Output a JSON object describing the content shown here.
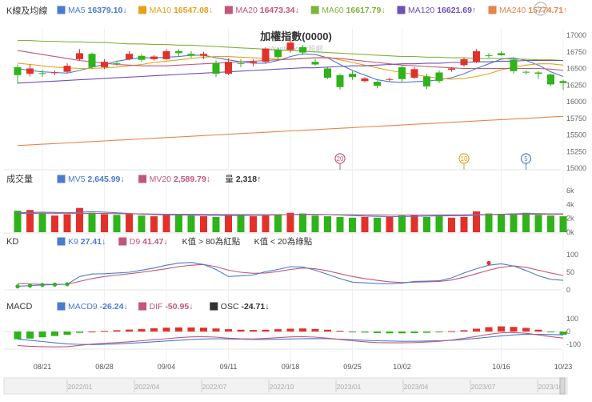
{
  "chart_data": {
    "type": "candlestick",
    "title": "加權指數(0000)",
    "watermark": "WantGoo 玩股網",
    "x_tick_labels": [
      {
        "label": "08/21",
        "index": 2
      },
      {
        "label": "08/28",
        "index": 7
      },
      {
        "label": "09/04",
        "index": 12
      },
      {
        "label": "09/11",
        "index": 17
      },
      {
        "label": "09/18",
        "index": 22
      },
      {
        "label": "09/25",
        "index": 27
      },
      {
        "label": "10/02",
        "index": 31
      },
      {
        "label": "10/16",
        "index": 39
      },
      {
        "label": "10/23",
        "index": 44
      }
    ],
    "overview_labels": [
      "2022/01",
      "2022/04",
      "2022/07",
      "2022/10",
      "2023/01",
      "2023/04",
      "2023/07",
      "2023/10"
    ],
    "price_panel": {
      "label": "K線及均線",
      "ylim": [
        15000,
        17000
      ],
      "yticks": [
        17000,
        16750,
        16500,
        16250,
        16000,
        15750,
        15500,
        15250,
        15000
      ],
      "legend": [
        {
          "name": "MA5",
          "value": "16379.10",
          "arrow": "↓",
          "color": "#4a7bd0"
        },
        {
          "name": "MA10",
          "value": "16547.08",
          "arrow": "↓",
          "color": "#e3a21a"
        },
        {
          "name": "MA20",
          "value": "16473.34",
          "arrow": "↓",
          "color": "#c2567a"
        },
        {
          "name": "MA60",
          "value": "16617.79",
          "arrow": "↓",
          "color": "#7fb33a"
        },
        {
          "name": "MA120",
          "value": "16621.69",
          "arrow": "↑",
          "color": "#6f4fb8"
        },
        {
          "name": "MA240",
          "value": "15774.71",
          "arrow": "↑",
          "color": "#e6844a"
        }
      ],
      "candles": [
        {
          "o": 16520,
          "h": 16560,
          "l": 16270,
          "c": 16400
        },
        {
          "o": 16420,
          "h": 16560,
          "l": 16380,
          "c": 16500
        },
        {
          "o": 16430,
          "h": 16480,
          "l": 16370,
          "c": 16420
        },
        {
          "o": 16430,
          "h": 16470,
          "l": 16400,
          "c": 16440
        },
        {
          "o": 16450,
          "h": 16580,
          "l": 16430,
          "c": 16540
        },
        {
          "o": 16640,
          "h": 16790,
          "l": 16620,
          "c": 16730
        },
        {
          "o": 16720,
          "h": 16740,
          "l": 16500,
          "c": 16520
        },
        {
          "o": 16520,
          "h": 16640,
          "l": 16490,
          "c": 16600
        },
        {
          "o": 16580,
          "h": 16600,
          "l": 16540,
          "c": 16570
        },
        {
          "o": 16640,
          "h": 16760,
          "l": 16620,
          "c": 16720
        },
        {
          "o": 16690,
          "h": 16720,
          "l": 16600,
          "c": 16630
        },
        {
          "o": 16640,
          "h": 16700,
          "l": 16620,
          "c": 16680
        },
        {
          "o": 16640,
          "h": 16790,
          "l": 16630,
          "c": 16760
        },
        {
          "o": 16760,
          "h": 16790,
          "l": 16670,
          "c": 16730
        },
        {
          "o": 16720,
          "h": 16760,
          "l": 16660,
          "c": 16690
        },
        {
          "o": 16690,
          "h": 16750,
          "l": 16640,
          "c": 16720
        },
        {
          "o": 16580,
          "h": 16620,
          "l": 16370,
          "c": 16420
        },
        {
          "o": 16420,
          "h": 16650,
          "l": 16400,
          "c": 16600
        },
        {
          "o": 16580,
          "h": 16640,
          "l": 16520,
          "c": 16570
        },
        {
          "o": 16580,
          "h": 16640,
          "l": 16530,
          "c": 16600
        },
        {
          "o": 16600,
          "h": 16820,
          "l": 16580,
          "c": 16800
        },
        {
          "o": 16780,
          "h": 16810,
          "l": 16640,
          "c": 16670
        },
        {
          "o": 16780,
          "h": 16950,
          "l": 16740,
          "c": 16890
        },
        {
          "o": 16820,
          "h": 16850,
          "l": 16700,
          "c": 16740
        },
        {
          "o": 16600,
          "h": 16640,
          "l": 16540,
          "c": 16560
        },
        {
          "o": 16500,
          "h": 16520,
          "l": 16340,
          "c": 16360
        },
        {
          "o": 16400,
          "h": 16420,
          "l": 16180,
          "c": 16220
        },
        {
          "o": 16420,
          "h": 16460,
          "l": 16330,
          "c": 16370
        },
        {
          "o": 16310,
          "h": 16370,
          "l": 16290,
          "c": 16350
        },
        {
          "o": 16300,
          "h": 16320,
          "l": 16200,
          "c": 16240
        },
        {
          "o": 16330,
          "h": 16360,
          "l": 16300,
          "c": 16340
        },
        {
          "o": 16520,
          "h": 16540,
          "l": 16290,
          "c": 16340
        },
        {
          "o": 16360,
          "h": 16520,
          "l": 16340,
          "c": 16490
        },
        {
          "o": 16380,
          "h": 16420,
          "l": 16190,
          "c": 16230
        },
        {
          "o": 16440,
          "h": 16470,
          "l": 16280,
          "c": 16310
        },
        {
          "o": 16480,
          "h": 16520,
          "l": 16450,
          "c": 16500
        },
        {
          "o": 16550,
          "h": 16660,
          "l": 16530,
          "c": 16640
        },
        {
          "o": 16600,
          "h": 16790,
          "l": 16580,
          "c": 16760
        },
        {
          "o": 16700,
          "h": 16730,
          "l": 16660,
          "c": 16690
        },
        {
          "o": 16730,
          "h": 16760,
          "l": 16690,
          "c": 16700
        },
        {
          "o": 16630,
          "h": 16660,
          "l": 16420,
          "c": 16460
        },
        {
          "o": 16450,
          "h": 16470,
          "l": 16410,
          "c": 16440
        },
        {
          "o": 16440,
          "h": 16460,
          "l": 16340,
          "c": 16420
        },
        {
          "o": 16410,
          "h": 16420,
          "l": 16240,
          "c": 16260
        },
        {
          "o": 16310,
          "h": 16330,
          "l": 16180,
          "c": 16280
        }
      ],
      "ma_lines": {
        "MA5": [
          16500,
          16470,
          16450,
          16440,
          16430,
          16470,
          16520,
          16560,
          16610,
          16640,
          16660,
          16660,
          16670,
          16680,
          16700,
          16700,
          16660,
          16630,
          16600,
          16580,
          16580,
          16620,
          16680,
          16720,
          16710,
          16660,
          16560,
          16470,
          16400,
          16330,
          16300,
          16290,
          16300,
          16310,
          16330,
          16360,
          16420,
          16500,
          16570,
          16640,
          16660,
          16620,
          16550,
          16450,
          16380
        ],
        "MA10": [
          16580,
          16560,
          16540,
          16520,
          16510,
          16500,
          16500,
          16510,
          16520,
          16540,
          16560,
          16590,
          16610,
          16630,
          16650,
          16670,
          16680,
          16680,
          16670,
          16660,
          16650,
          16640,
          16640,
          16650,
          16660,
          16670,
          16630,
          16590,
          16550,
          16510,
          16470,
          16440,
          16410,
          16380,
          16350,
          16340,
          16350,
          16380,
          16420,
          16480,
          16520,
          16550,
          16570,
          16570,
          16550
        ],
        "MA20": [
          16770,
          16740,
          16710,
          16680,
          16650,
          16620,
          16600,
          16580,
          16560,
          16550,
          16540,
          16540,
          16540,
          16550,
          16560,
          16570,
          16580,
          16590,
          16600,
          16610,
          16620,
          16630,
          16640,
          16650,
          16660,
          16660,
          16650,
          16630,
          16610,
          16590,
          16570,
          16550,
          16540,
          16530,
          16520,
          16510,
          16500,
          16500,
          16500,
          16500,
          16500,
          16500,
          16500,
          16490,
          16470
        ],
        "MA60": [
          16920,
          16920,
          16910,
          16910,
          16900,
          16900,
          16890,
          16890,
          16880,
          16870,
          16870,
          16860,
          16860,
          16850,
          16850,
          16840,
          16830,
          16820,
          16810,
          16800,
          16790,
          16780,
          16770,
          16760,
          16750,
          16740,
          16730,
          16720,
          16710,
          16700,
          16690,
          16680,
          16680,
          16670,
          16670,
          16660,
          16660,
          16650,
          16650,
          16650,
          16640,
          16640,
          16630,
          16630,
          16620
        ],
        "MA120": [
          16280,
          16290,
          16300,
          16310,
          16320,
          16330,
          16340,
          16350,
          16360,
          16370,
          16380,
          16390,
          16400,
          16410,
          16420,
          16430,
          16440,
          16450,
          16460,
          16470,
          16480,
          16490,
          16500,
          16510,
          16510,
          16520,
          16530,
          16540,
          16540,
          16550,
          16560,
          16570,
          16570,
          16580,
          16580,
          16590,
          16590,
          16600,
          16600,
          16610,
          16610,
          16620,
          16620,
          16620,
          16620
        ],
        "MA240": [
          15340,
          15350,
          15360,
          15370,
          15380,
          15390,
          15400,
          15410,
          15420,
          15430,
          15440,
          15450,
          15460,
          15470,
          15480,
          15490,
          15500,
          15510,
          15520,
          15530,
          15540,
          15550,
          15560,
          15570,
          15580,
          15590,
          15600,
          15610,
          15620,
          15630,
          15640,
          15650,
          15660,
          15670,
          15680,
          15690,
          15700,
          15710,
          15720,
          15730,
          15740,
          15750,
          15760,
          15770,
          15780
        ]
      },
      "markers": [
        {
          "label": "20",
          "index": 26,
          "color": "#c2567a"
        },
        {
          "label": "10",
          "index": 36,
          "color": "#e3a21a"
        },
        {
          "label": "5",
          "index": 41,
          "color": "#4a7bd0"
        }
      ]
    },
    "volume_panel": {
      "label": "成交量",
      "unit_ticks": [
        "6k",
        "4k",
        "2k",
        "0k"
      ],
      "ylim": [
        0,
        6000
      ],
      "legend": [
        {
          "name": "MV5",
          "value": "2,645.99",
          "arrow": "↓",
          "color": "#4a7bd0"
        },
        {
          "name": "MV20",
          "value": "2,589.79",
          "arrow": "↓",
          "color": "#c2567a"
        },
        {
          "name": "量",
          "value": "2,318",
          "arrow": "↑",
          "color": "#333333"
        }
      ],
      "values": [
        3100,
        3200,
        2700,
        2400,
        2600,
        3500,
        2800,
        2600,
        2500,
        2600,
        2400,
        2300,
        2500,
        2600,
        2400,
        2300,
        2200,
        2600,
        2500,
        2300,
        2400,
        2600,
        2800,
        2700,
        2400,
        2300,
        2200,
        2100,
        2200,
        2100,
        2300,
        2400,
        2500,
        2200,
        2300,
        2100,
        2200,
        3000,
        2700,
        2600,
        2700,
        2800,
        2500,
        2400,
        2300
      ],
      "mv5": [
        2800,
        2850,
        2900,
        2850,
        2800,
        2900,
        2950,
        2900,
        2800,
        2700,
        2600,
        2550,
        2500,
        2480,
        2460,
        2440,
        2420,
        2400,
        2420,
        2440,
        2460,
        2500,
        2560,
        2600,
        2600,
        2550,
        2480,
        2400,
        2330,
        2280,
        2250,
        2260,
        2300,
        2330,
        2350,
        2360,
        2380,
        2450,
        2550,
        2600,
        2650,
        2700,
        2680,
        2650,
        2640
      ],
      "mv20": [
        2700,
        2720,
        2740,
        2740,
        2730,
        2720,
        2710,
        2700,
        2680,
        2660,
        2640,
        2620,
        2600,
        2590,
        2580,
        2570,
        2560,
        2550,
        2550,
        2540,
        2540,
        2540,
        2540,
        2540,
        2540,
        2530,
        2520,
        2510,
        2500,
        2490,
        2480,
        2480,
        2480,
        2480,
        2490,
        2500,
        2510,
        2530,
        2550,
        2560,
        2570,
        2580,
        2585,
        2588,
        2590
      ]
    },
    "kd_panel": {
      "label": "KD",
      "ylim": [
        0,
        100
      ],
      "yticks": [
        100,
        50,
        0
      ],
      "legend": [
        {
          "name": "K9",
          "value": "27.41",
          "arrow": "↓",
          "color": "#4a7bd0"
        },
        {
          "name": "D9",
          "value": "41.47",
          "arrow": "↓",
          "color": "#c2567a"
        }
      ],
      "notes": [
        "K值 > 80為紅點",
        "K值 < 20為綠點"
      ],
      "k": [
        10,
        12,
        14,
        15,
        16,
        38,
        45,
        46,
        48,
        50,
        56,
        62,
        70,
        76,
        78,
        72,
        58,
        38,
        40,
        42,
        52,
        58,
        66,
        65,
        56,
        44,
        32,
        22,
        20,
        18,
        17,
        19,
        24,
        25,
        26,
        34,
        48,
        60,
        70,
        74,
        68,
        55,
        40,
        30,
        27
      ],
      "d": [
        18,
        17,
        16,
        16,
        16,
        24,
        32,
        38,
        42,
        46,
        50,
        55,
        60,
        66,
        70,
        72,
        66,
        56,
        50,
        47,
        48,
        52,
        58,
        62,
        60,
        54,
        46,
        38,
        32,
        27,
        23,
        21,
        22,
        23,
        24,
        28,
        36,
        46,
        56,
        64,
        68,
        64,
        56,
        48,
        41
      ]
    },
    "macd_panel": {
      "label": "MACD",
      "ylim": [
        -150,
        100
      ],
      "yticks": [
        100,
        0,
        -100
      ],
      "legend": [
        {
          "name": "MACD9",
          "value": "-26.24",
          "arrow": "↓",
          "color": "#4a7bd0"
        },
        {
          "name": "DIF",
          "value": "-50.95",
          "arrow": "↓",
          "color": "#c2567a"
        },
        {
          "name": "OSC",
          "value": "-24.71",
          "arrow": "↓",
          "color": "#333333"
        }
      ],
      "osc": [
        -60,
        -55,
        -45,
        -35,
        -25,
        -10,
        0,
        5,
        10,
        15,
        20,
        25,
        30,
        32,
        32,
        30,
        24,
        18,
        14,
        12,
        14,
        18,
        22,
        24,
        20,
        14,
        6,
        -2,
        -8,
        -12,
        -14,
        -14,
        -12,
        -10,
        -6,
        2,
        10,
        22,
        34,
        40,
        36,
        28,
        14,
        -6,
        -25
      ],
      "dif": [
        -110,
        -115,
        -118,
        -120,
        -118,
        -108,
        -98,
        -92,
        -86,
        -80,
        -72,
        -64,
        -56,
        -48,
        -42,
        -40,
        -44,
        -52,
        -56,
        -58,
        -54,
        -48,
        -42,
        -40,
        -44,
        -52,
        -62,
        -72,
        -80,
        -86,
        -88,
        -88,
        -86,
        -82,
        -76,
        -66,
        -54,
        -38,
        -22,
        -10,
        -8,
        -14,
        -26,
        -40,
        -51
      ],
      "macd9": [
        -60,
        -68,
        -78,
        -88,
        -96,
        -100,
        -102,
        -100,
        -96,
        -92,
        -86,
        -80,
        -74,
        -68,
        -62,
        -58,
        -56,
        -58,
        -60,
        -62,
        -62,
        -60,
        -58,
        -56,
        -55,
        -56,
        -60,
        -64,
        -68,
        -72,
        -74,
        -76,
        -76,
        -74,
        -72,
        -68,
        -62,
        -54,
        -44,
        -34,
        -26,
        -22,
        -22,
        -24,
        -26
      ]
    }
  }
}
